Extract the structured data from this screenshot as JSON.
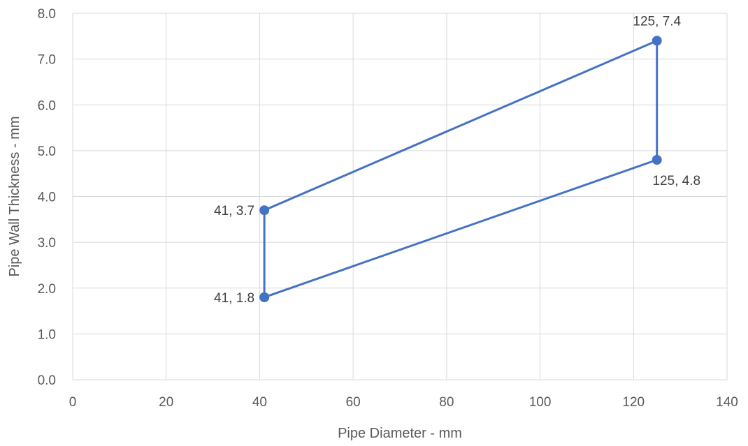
{
  "chart_data": {
    "type": "scatter",
    "title": "",
    "xlabel": "Pipe Diameter - mm",
    "ylabel": "Pipe Wall Thickness - mm",
    "xlim": [
      0,
      140
    ],
    "ylim": [
      0,
      8
    ],
    "x_ticks": [
      0,
      20,
      40,
      60,
      80,
      100,
      120,
      140
    ],
    "x_tick_labels": [
      "0",
      "20",
      "40",
      "60",
      "80",
      "100",
      "120",
      "140"
    ],
    "y_ticks": [
      0,
      1,
      2,
      3,
      4,
      5,
      6,
      7,
      8
    ],
    "y_tick_labels": [
      "0.0",
      "1.0",
      "2.0",
      "3.0",
      "4.0",
      "5.0",
      "6.0",
      "7.0",
      "8.0"
    ],
    "grid": true,
    "legend": "none",
    "line_style": "straight lines with markers",
    "series_color": "#4472c4",
    "grid_color": "#d9d9d9",
    "series": [
      {
        "x": [
          41,
          41,
          125,
          125,
          41
        ],
        "y": [
          1.8,
          3.7,
          7.4,
          4.8,
          1.8
        ]
      }
    ],
    "annotations": [
      {
        "x": 125,
        "y": 7.4,
        "text": "125, 7.4",
        "position": "above"
      },
      {
        "x": 125,
        "y": 4.8,
        "text": "125, 4.8",
        "position": "below"
      },
      {
        "x": 41,
        "y": 3.7,
        "text": "41, 3.7",
        "position": "left"
      },
      {
        "x": 41,
        "y": 1.8,
        "text": "41, 1.8",
        "position": "left"
      }
    ]
  }
}
